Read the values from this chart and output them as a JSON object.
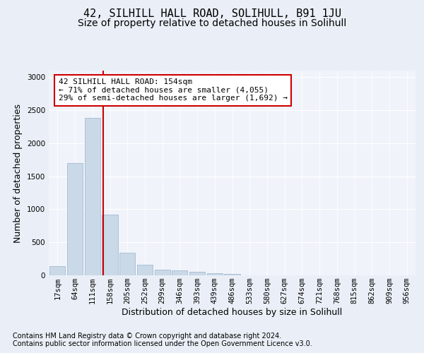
{
  "title": "42, SILHILL HALL ROAD, SOLIHULL, B91 1JU",
  "subtitle": "Size of property relative to detached houses in Solihull",
  "xlabel": "Distribution of detached houses by size in Solihull",
  "ylabel": "Number of detached properties",
  "bar_labels": [
    "17sqm",
    "64sqm",
    "111sqm",
    "158sqm",
    "205sqm",
    "252sqm",
    "299sqm",
    "346sqm",
    "393sqm",
    "439sqm",
    "486sqm",
    "533sqm",
    "580sqm",
    "627sqm",
    "674sqm",
    "721sqm",
    "768sqm",
    "815sqm",
    "862sqm",
    "909sqm",
    "956sqm"
  ],
  "bar_values": [
    140,
    1700,
    2380,
    920,
    340,
    160,
    90,
    80,
    55,
    35,
    20,
    5,
    5,
    3,
    2,
    0,
    0,
    0,
    0,
    0,
    0
  ],
  "bar_color": "#c9d9e8",
  "bar_edge_color": "#9ab0c8",
  "property_label": "42 SILHILL HALL ROAD: 154sqm",
  "annotation_line1": "← 71% of detached houses are smaller (4,055)",
  "annotation_line2": "29% of semi-detached houses are larger (1,692) →",
  "vline_color": "#cc0000",
  "vline_position": 2.62,
  "ylim": [
    0,
    3100
  ],
  "yticks": [
    0,
    500,
    1000,
    1500,
    2000,
    2500,
    3000
  ],
  "bg_color": "#eaeff7",
  "plot_bg_color": "#f0f4fa",
  "footer_line1": "Contains HM Land Registry data © Crown copyright and database right 2024.",
  "footer_line2": "Contains public sector information licensed under the Open Government Licence v3.0.",
  "title_fontsize": 11,
  "subtitle_fontsize": 10,
  "axis_label_fontsize": 9,
  "tick_fontsize": 7.5,
  "annotation_fontsize": 8,
  "footer_fontsize": 7
}
